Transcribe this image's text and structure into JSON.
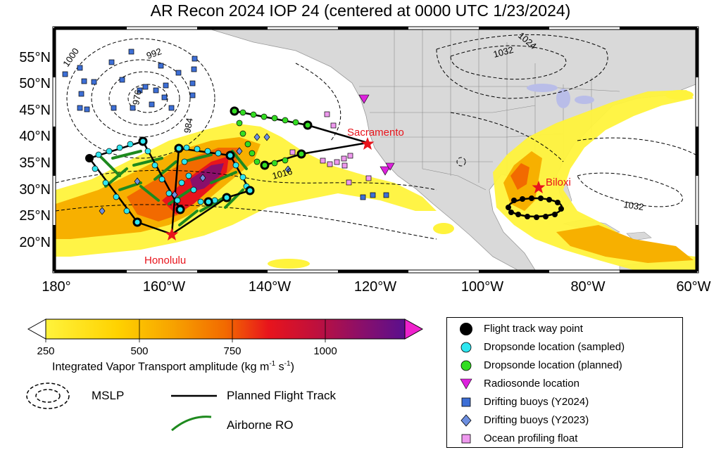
{
  "title": "AR Recon 2024 IOP 24 (centered at 0000 UTC 1/23/2024)",
  "map": {
    "lat_ticks": [
      "55°N",
      "50°N",
      "45°N",
      "40°N",
      "35°N",
      "30°N",
      "25°N",
      "20°N"
    ],
    "lon_ticks": [
      "180°",
      "160°W",
      "140°W",
      "120°W",
      "100°W",
      "80°W",
      "60°W"
    ],
    "contour_labels": [
      "1000",
      "992",
      "976",
      "984",
      "1016",
      "1032",
      "1032",
      "1024"
    ],
    "cities": [
      {
        "name": "Sacramento",
        "color": "#e8141c"
      },
      {
        "name": "Honolulu",
        "color": "#e8141c"
      },
      {
        "name": "Biloxi",
        "color": "#e8141c"
      }
    ]
  },
  "colorbar": {
    "ticks": [
      "250",
      "500",
      "750",
      "1000"
    ],
    "label_main": "Integrated Vapor Transport amplitude (kg m",
    "label_sup1": "-1",
    "label_mid": " s",
    "label_sup2": "-1",
    "label_end": ")"
  },
  "legend_left": {
    "mslp": "MSLP",
    "planned_track": "Planned Flight Track",
    "airborne_ro": "Airborne RO"
  },
  "legend_right": [
    {
      "label": "Flight track way point",
      "icon": "black-circle-icon"
    },
    {
      "label": "Dropsonde location (sampled)",
      "icon": "cyan-circle-icon"
    },
    {
      "label": "Dropsonde location (planned)",
      "icon": "green-circle-icon"
    },
    {
      "label": "Radiosonde location",
      "icon": "magenta-triangle-icon"
    },
    {
      "label": "Drifting buoys (Y2024)",
      "icon": "blue-square-icon"
    },
    {
      "label": "Drifting buoys (Y2023)",
      "icon": "blue-diamond-icon"
    },
    {
      "label": "Ocean profiling float",
      "icon": "pink-square-icon"
    }
  ],
  "colors": {
    "ivt_low": "#fff33c",
    "ivt_mid": "#f7a400",
    "ivt_high": "#e8141c",
    "ivt_max": "#5a0f8e",
    "land": "#d9d9d9",
    "sampled": "#2ee6f0",
    "planned": "#33dd22",
    "ro": "#1e8a1e",
    "buoy2024": "#3d6fd6",
    "buoy2023": "#6d8fe0",
    "float": "#ee99ee",
    "radiosonde": "#dd22dd"
  }
}
